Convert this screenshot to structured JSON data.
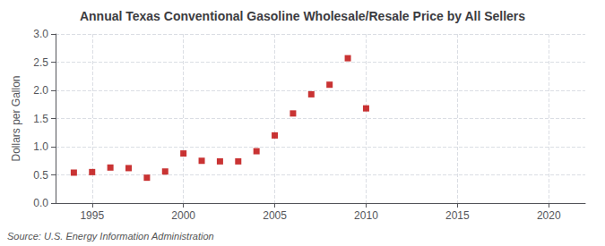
{
  "chart_data": {
    "type": "scatter",
    "title": "Annual Texas Conventional Gasoline Wholesale/Resale Price by All Sellers",
    "ylabel": "Dollars per Gallon",
    "annotation": "Source: U.S. Energy Information Administration",
    "x": [
      1994,
      1995,
      1996,
      1997,
      1998,
      1999,
      2000,
      2001,
      2002,
      2003,
      2004,
      2005,
      2006,
      2007,
      2008,
      2009,
      2010
    ],
    "values": [
      0.54,
      0.55,
      0.63,
      0.62,
      0.45,
      0.56,
      0.88,
      0.75,
      0.74,
      0.74,
      0.92,
      1.2,
      1.59,
      1.93,
      2.1,
      2.57,
      1.68
    ],
    "color": "#bb0000",
    "marker": "square",
    "xlim": [
      1993,
      2022
    ],
    "xticks": [
      1995,
      2000,
      2005,
      2010,
      2015,
      2020
    ],
    "ylim": [
      0.0,
      3.0
    ],
    "yticks": [
      {
        "value": 0.0,
        "label": "0.0"
      },
      0.5,
      {
        "value": 1.0,
        "label": "1.0"
      },
      1.5,
      {
        "value": 2.0,
        "label": "2.0"
      },
      2.5,
      {
        "value": 3.0,
        "label": "3.0"
      }
    ],
    "grid": true
  }
}
